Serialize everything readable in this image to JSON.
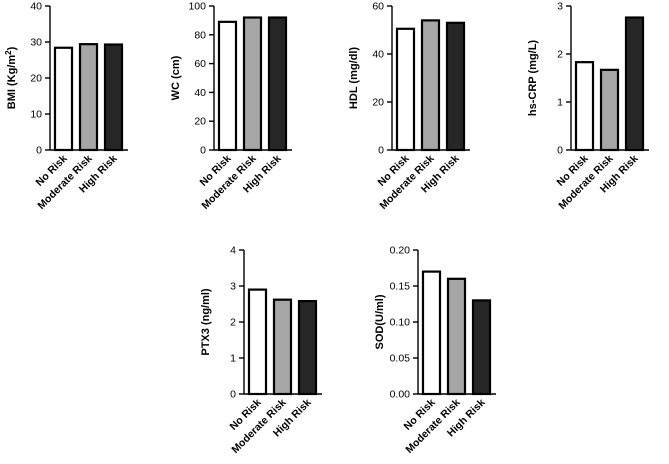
{
  "categories": [
    "No Risk",
    "Moderate Risk",
    "High Risk"
  ],
  "bar_fills": [
    "#ffffff",
    "#a6a6a6",
    "#262626"
  ],
  "chart_data": [
    {
      "type": "bar",
      "name": "bmi",
      "ylabel": "BMI (Kg/m²)",
      "ylabel_base": "BMI (Kg/m",
      "ylabel_sup": "2",
      "ylabel_tail": ")",
      "categories": [
        "No Risk",
        "Moderate Risk",
        "High Risk"
      ],
      "values": [
        28.4,
        29.4,
        29.3
      ],
      "ylim": [
        0,
        40
      ],
      "yticks": [
        "0",
        "10",
        "20",
        "30",
        "40"
      ]
    },
    {
      "type": "bar",
      "name": "wc",
      "ylabel": "WC (cm)",
      "categories": [
        "No Risk",
        "Moderate Risk",
        "High Risk"
      ],
      "values": [
        89,
        92,
        92
      ],
      "ylim": [
        0,
        100
      ],
      "yticks": [
        "0",
        "20",
        "40",
        "60",
        "80",
        "100"
      ]
    },
    {
      "type": "bar",
      "name": "hdl",
      "ylabel": "HDL (mg/dl)",
      "categories": [
        "No Risk",
        "Moderate Risk",
        "High Risk"
      ],
      "values": [
        50.5,
        54,
        53
      ],
      "ylim": [
        0,
        60
      ],
      "yticks": [
        "0",
        "20",
        "40",
        "60"
      ]
    },
    {
      "type": "bar",
      "name": "hs-crp",
      "ylabel": "hs-CRP (mg/L)",
      "categories": [
        "No Risk",
        "Moderate Risk",
        "High Risk"
      ],
      "values": [
        1.83,
        1.67,
        2.76
      ],
      "ylim": [
        0,
        3
      ],
      "yticks": [
        "0",
        "1",
        "2",
        "3"
      ]
    },
    {
      "type": "bar",
      "name": "ptx3",
      "ylabel": "PTX3 (ng/ml)",
      "categories": [
        "No Risk",
        "Moderate Risk",
        "High Risk"
      ],
      "values": [
        2.9,
        2.62,
        2.58
      ],
      "ylim": [
        0,
        4
      ],
      "yticks": [
        "0",
        "1",
        "2",
        "3",
        "4"
      ]
    },
    {
      "type": "bar",
      "name": "sod",
      "ylabel": "SOD(U/ml)",
      "categories": [
        "No Risk",
        "Moderate Risk",
        "High Risk"
      ],
      "values": [
        0.17,
        0.16,
        0.13
      ],
      "ylim": [
        0,
        0.2
      ],
      "yticks": [
        "0.00",
        "0.05",
        "0.10",
        "0.15",
        "0.20"
      ]
    }
  ]
}
